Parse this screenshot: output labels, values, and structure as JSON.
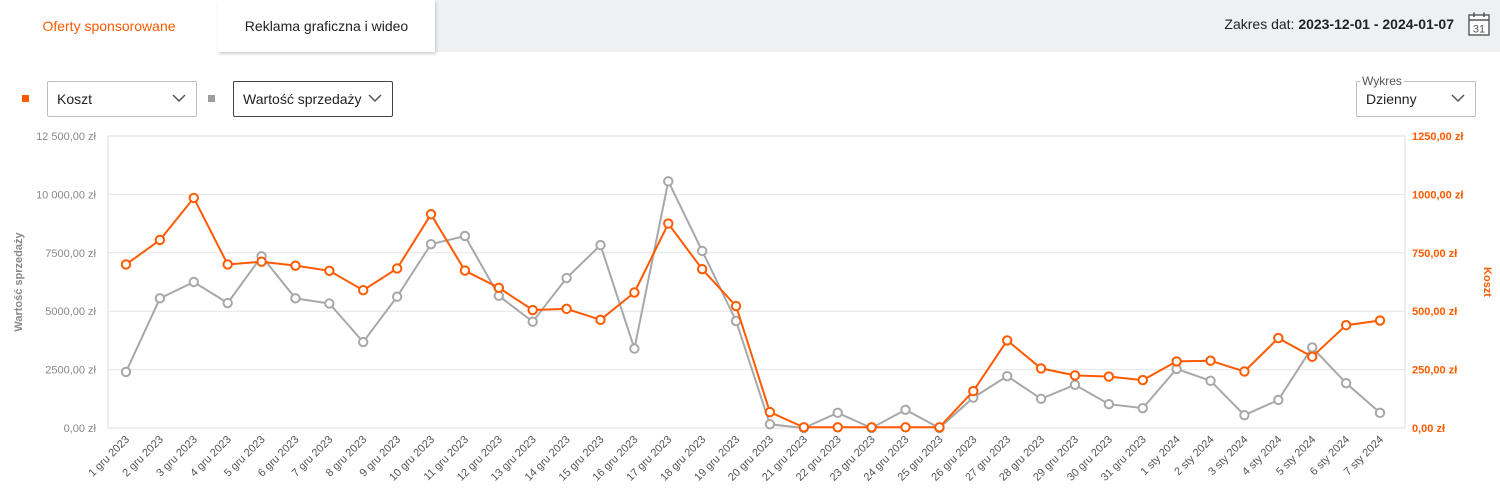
{
  "tabs": [
    {
      "label": "Oferty sponsorowane",
      "active": true
    },
    {
      "label": "Reklama graficzna i wideo",
      "active": false
    }
  ],
  "date_range": {
    "label": "Zakres dat:",
    "value": "2023-12-01 - 2024-01-07",
    "calendar_day": "31"
  },
  "controls": {
    "metric1": {
      "value": "Koszt",
      "color": "#ff5a00"
    },
    "metric2": {
      "value": "Wartość sprzedaży",
      "color": "#9e9e9e"
    },
    "chart_type": {
      "label": "Wykres",
      "value": "Dzienny"
    }
  },
  "colors": {
    "accent": "#ff5a00",
    "grey": "#a8a8a8"
  },
  "chart_data": {
    "type": "line",
    "x": [
      "1 gru 2023",
      "2 gru 2023",
      "3 gru 2023",
      "4 gru 2023",
      "5 gru 2023",
      "6 gru 2023",
      "7 gru 2023",
      "8 gru 2023",
      "9 gru 2023",
      "10 gru 2023",
      "11 gru 2023",
      "12 gru 2023",
      "13 gru 2023",
      "14 gru 2023",
      "15 gru 2023",
      "16 gru 2023",
      "17 gru 2023",
      "18 gru 2023",
      "19 gru 2023",
      "20 gru 2023",
      "21 gru 2023",
      "22 gru 2023",
      "23 gru 2023",
      "24 gru 2023",
      "25 gru 2023",
      "26 gru 2023",
      "27 gru 2023",
      "28 gru 2023",
      "29 gru 2023",
      "30 gru 2023",
      "31 gru 2023",
      "1 sty 2024",
      "2 sty 2024",
      "3 sty 2024",
      "4 sty 2024",
      "5 sty 2024",
      "6 sty 2024",
      "7 sty 2024"
    ],
    "series": [
      {
        "name": "Wartość sprzedaży",
        "axis": "left",
        "color": "#a8a8a8",
        "values": [
          2400,
          5550,
          6250,
          5350,
          7350,
          5550,
          5330,
          3680,
          5620,
          7870,
          8220,
          5660,
          4550,
          6420,
          7830,
          3400,
          10560,
          7580,
          4580,
          160,
          0,
          650,
          0,
          780,
          0,
          1300,
          2220,
          1250,
          1850,
          1020,
          850,
          2530,
          2020,
          550,
          1200,
          3450,
          1920,
          650
        ]
      },
      {
        "name": "Koszt",
        "axis": "right",
        "color": "#ff5a00",
        "values": [
          700,
          805,
          985,
          700,
          712,
          695,
          673,
          590,
          683,
          915,
          674,
          600,
          505,
          510,
          463,
          580,
          875,
          680,
          522,
          68,
          3,
          3,
          3,
          3,
          3,
          158,
          375,
          255,
          225,
          220,
          205,
          285,
          288,
          242,
          385,
          305,
          440,
          460
        ]
      }
    ],
    "left_axis": {
      "label": "Wartość sprzedaży",
      "ylim": [
        0,
        12500
      ],
      "ticks": [
        "0,00 zł",
        "2500,00 zł",
        "5000,00 zł",
        "7500,00 zł",
        "10 000,00 zł",
        "12 500,00 zł"
      ]
    },
    "right_axis": {
      "label": "Koszt",
      "ylim": [
        0,
        1250
      ],
      "ticks": [
        "0,00 zł",
        "250,00 zł",
        "500,00 zł",
        "750,00 zł",
        "1000,00 zł",
        "1250,00 zł"
      ]
    },
    "grid": true
  }
}
